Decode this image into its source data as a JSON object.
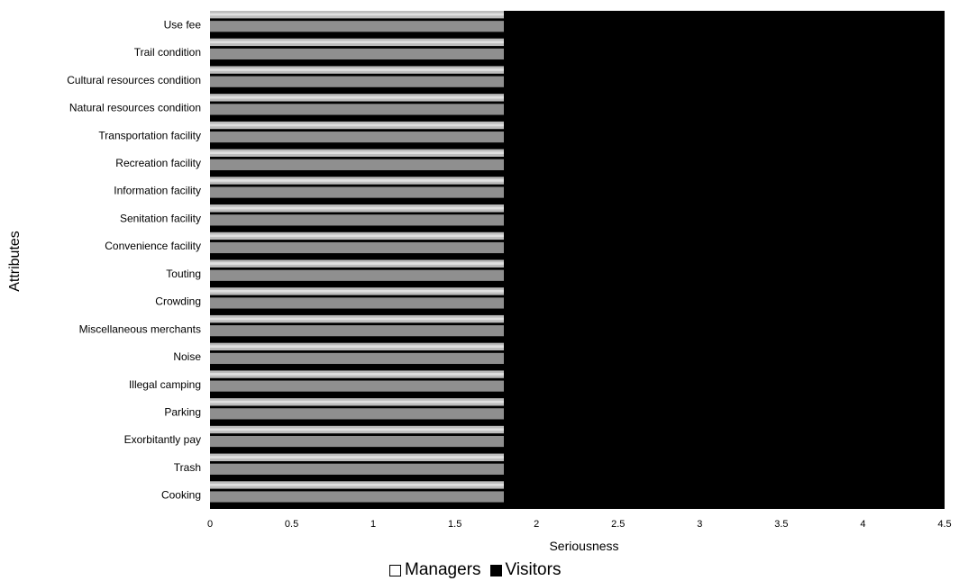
{
  "chart_data": {
    "type": "bar",
    "orientation": "horizontal",
    "title": "",
    "xlabel": "Seriousness",
    "ylabel": "Attributes",
    "xlim": [
      0,
      4.5
    ],
    "xticks": [
      "0",
      "0.5",
      "1",
      "1.5",
      "2",
      "2.5",
      "3",
      "3.5",
      "4",
      "4.5"
    ],
    "grid": false,
    "legend_position": "bottom",
    "categories": [
      "Use fee",
      "Trail condition",
      "Cultural resources condition",
      "Natural resources condition",
      "Transportation facility",
      "Recreation facility",
      "Information facility",
      "Senitation facility",
      "Convenience facility",
      "Touting",
      "Crowding",
      "Miscellaneous merchants",
      "Noise",
      "Illegal camping",
      "Parking",
      "Exorbitantly pay",
      "Trash",
      "Cooking"
    ],
    "series": [
      {
        "name": "Managers",
        "color": "#ffffff",
        "values": [
          1.8,
          1.8,
          1.8,
          1.8,
          1.8,
          1.8,
          1.8,
          1.8,
          1.8,
          1.8,
          1.8,
          1.8,
          1.8,
          1.8,
          1.8,
          1.8,
          1.8,
          1.8
        ]
      },
      {
        "name": "Visitors",
        "color": "#000000",
        "values": [
          1.8,
          1.8,
          1.8,
          1.8,
          1.8,
          1.8,
          1.8,
          1.8,
          1.8,
          1.8,
          1.8,
          1.8,
          1.8,
          1.8,
          1.8,
          1.8,
          1.8,
          1.8
        ]
      }
    ],
    "plot_background": "#000000",
    "band_colors": [
      "#bdbdbd",
      "#8f8f8f"
    ]
  }
}
